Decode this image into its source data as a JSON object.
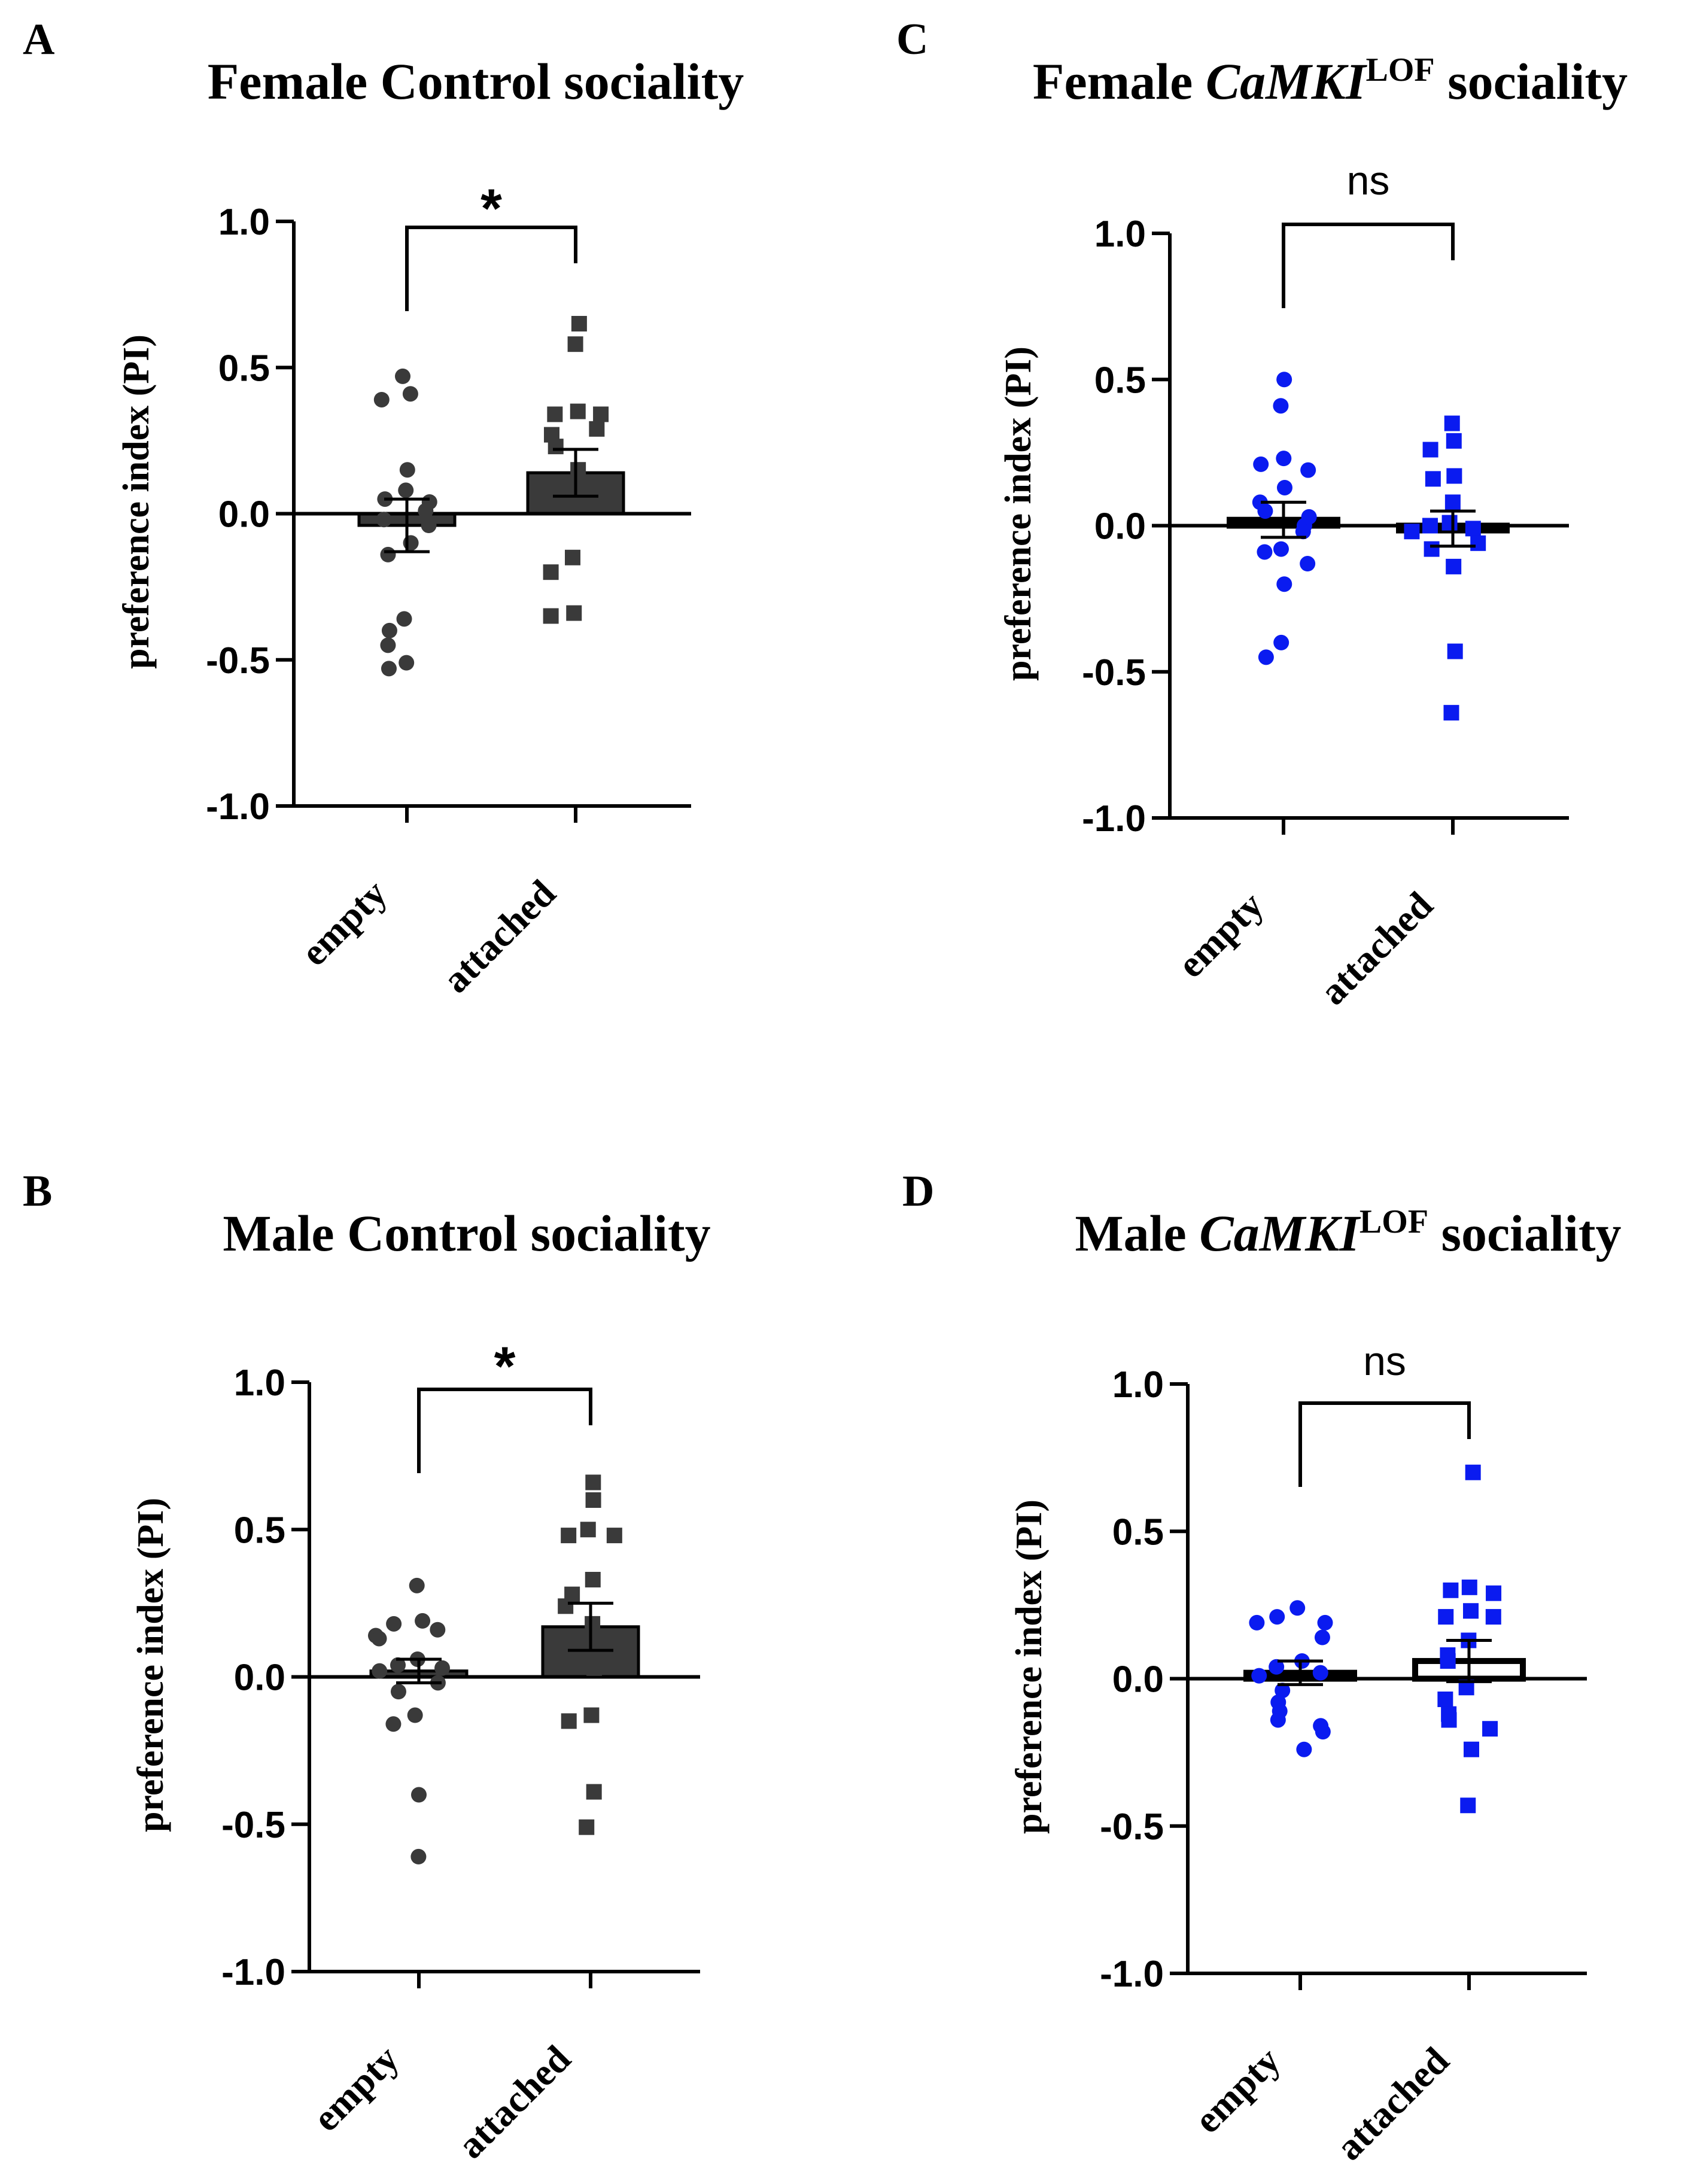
{
  "colors": {
    "control": "#3a3a3a",
    "lof": "#0a1bf0",
    "axis": "#000000"
  },
  "chart_data": [
    {
      "panel": "A",
      "type": "bar",
      "title": "Female Control sociality",
      "title_parts": [
        {
          "text": "Female Control sociality",
          "style": "normal"
        }
      ],
      "ylabel": "preference index (PI)",
      "ylim": [
        -1.0,
        1.0
      ],
      "yticks": [
        "1.0",
        "0.5",
        "0.0",
        "-0.5",
        "-1.0"
      ],
      "ytick_values": [
        1.0,
        0.5,
        0.0,
        -0.5,
        -1.0
      ],
      "categories": [
        "empty",
        "attached"
      ],
      "marker_color": "#3a3a3a",
      "bar_color": "#3a3a3a",
      "means": [
        -0.04,
        0.14
      ],
      "sem": [
        0.09,
        0.08
      ],
      "points": [
        [
          0.47,
          0.41,
          0.39,
          0.15,
          0.08,
          0.05,
          0.04,
          0.01,
          -0.02,
          -0.04,
          -0.1,
          -0.14,
          -0.36,
          -0.4,
          -0.45,
          -0.51,
          -0.53
        ],
        [
          0.65,
          0.58,
          0.35,
          0.34,
          0.34,
          0.29,
          0.27,
          0.23,
          0.15,
          0.08,
          0.05,
          -0.15,
          -0.2,
          -0.34,
          -0.35
        ]
      ],
      "significance": "*"
    },
    {
      "panel": "B",
      "type": "bar",
      "title": "Male Control sociality",
      "title_parts": [
        {
          "text": "Male Control sociality",
          "style": "normal"
        }
      ],
      "ylabel": "preference index (PI)",
      "ylim": [
        -1.0,
        1.0
      ],
      "yticks": [
        "1.0",
        "0.5",
        "0.0",
        "-0.5",
        "-1.0"
      ],
      "ytick_values": [
        1.0,
        0.5,
        0.0,
        -0.5,
        -1.0
      ],
      "categories": [
        "empty",
        "attached"
      ],
      "marker_color": "#3a3a3a",
      "bar_color": "#3a3a3a",
      "means": [
        0.02,
        0.17
      ],
      "sem": [
        0.04,
        0.08
      ],
      "points": [
        [
          0.31,
          0.19,
          0.18,
          0.16,
          0.14,
          0.13,
          0.06,
          0.04,
          0.03,
          0.02,
          -0.02,
          -0.05,
          -0.13,
          -0.16,
          -0.4,
          -0.61
        ],
        [
          0.66,
          0.6,
          0.5,
          0.48,
          0.48,
          0.33,
          0.28,
          0.24,
          0.18,
          0.13,
          0.03,
          -0.13,
          -0.15,
          -0.39,
          -0.51
        ]
      ],
      "significance": "*"
    },
    {
      "panel": "C",
      "type": "bar",
      "title": "Female CaMKI LOF sociality",
      "title_parts": [
        {
          "text": "Female ",
          "style": "normal"
        },
        {
          "text": "CaMKI",
          "style": "italic"
        },
        {
          "text": "LOF",
          "style": "sup"
        },
        {
          "text": " sociality",
          "style": "normal"
        }
      ],
      "ylabel": "preference index (PI)",
      "ylim": [
        -1.0,
        1.0
      ],
      "yticks": [
        "1.0",
        "0.5",
        "0.0",
        "-0.5",
        "-1.0"
      ],
      "ytick_values": [
        1.0,
        0.5,
        0.0,
        -0.5,
        -1.0
      ],
      "categories": [
        "empty",
        "attached"
      ],
      "marker_color": "#0a1bf0",
      "bar_color": "#000000",
      "means": [
        0.02,
        -0.01
      ],
      "sem": [
        0.06,
        0.06
      ],
      "points": [
        [
          0.5,
          0.41,
          0.23,
          0.21,
          0.19,
          0.13,
          0.08,
          0.05,
          0.03,
          0.0,
          -0.02,
          -0.08,
          -0.09,
          -0.13,
          -0.2,
          -0.4,
          -0.45
        ],
        [
          0.35,
          0.29,
          0.26,
          0.17,
          0.16,
          0.08,
          0.01,
          0.0,
          -0.01,
          -0.02,
          -0.06,
          -0.08,
          -0.14,
          -0.43,
          -0.64
        ]
      ],
      "significance": "ns"
    },
    {
      "panel": "D",
      "type": "bar",
      "title": "Male CaMKI LOF sociality",
      "title_parts": [
        {
          "text": "Male ",
          "style": "normal"
        },
        {
          "text": "CaMKI",
          "style": "italic"
        },
        {
          "text": "LOF",
          "style": "sup"
        },
        {
          "text": " sociality",
          "style": "normal"
        }
      ],
      "ylabel": "preference index (PI)",
      "ylim": [
        -1.0,
        1.0
      ],
      "yticks": [
        "1.0",
        "0.5",
        "0.0",
        "-0.5",
        "-1.0"
      ],
      "ytick_values": [
        1.0,
        0.5,
        0.0,
        -0.5,
        -1.0
      ],
      "categories": [
        "empty",
        "attached"
      ],
      "marker_color": "#0a1bf0",
      "bar_color": "#000000",
      "means": [
        0.02,
        0.06
      ],
      "sem": [
        0.04,
        0.07
      ],
      "points": [
        [
          0.24,
          0.21,
          0.19,
          0.19,
          0.14,
          0.06,
          0.04,
          0.02,
          0.01,
          -0.04,
          -0.08,
          -0.11,
          -0.14,
          -0.16,
          -0.18,
          -0.24
        ],
        [
          0.7,
          0.31,
          0.3,
          0.29,
          0.23,
          0.21,
          0.21,
          0.13,
          0.08,
          0.06,
          -0.03,
          -0.07,
          -0.12,
          -0.14,
          -0.17,
          -0.24,
          -0.43
        ]
      ],
      "significance": "ns"
    }
  ]
}
